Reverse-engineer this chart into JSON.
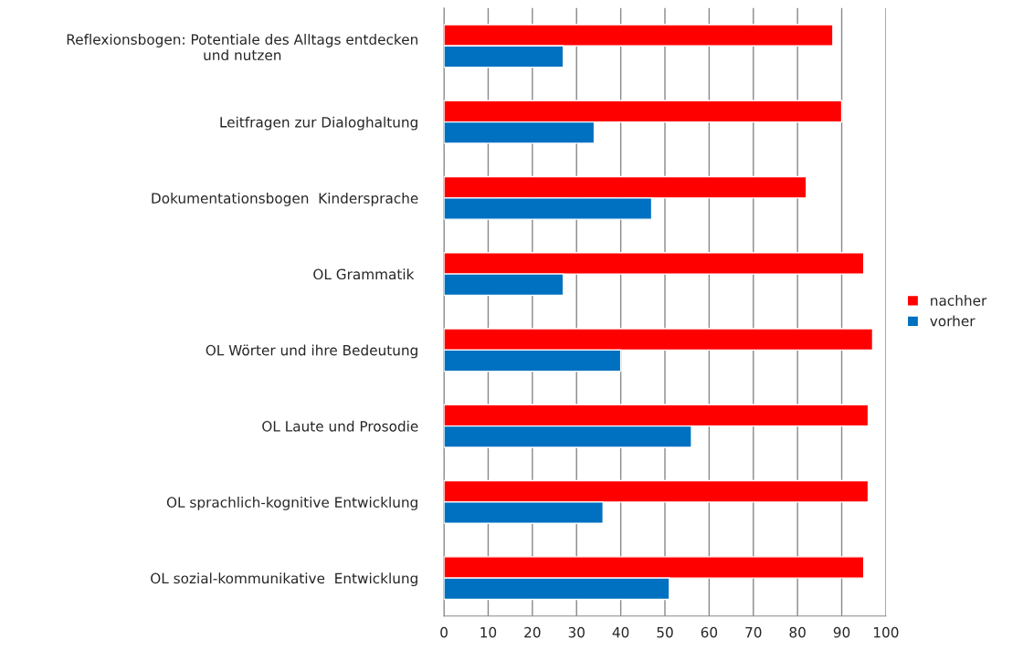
{
  "chart_data": {
    "type": "bar",
    "orientation": "horizontal",
    "categories": [
      "Reflexionsbogen: Potentiale des Alltags entdecken\nund nutzen",
      "Leitfragen zur Dialoghaltung",
      "Dokumentationsbogen  Kindersprache",
      "OL Grammatik ",
      "OL Wörter und ihre Bedeutung",
      "OL Laute und Prosodie",
      "OL sprachlich-kognitive Entwicklung",
      "OL sozial-kommunikative  Entwicklung"
    ],
    "series": [
      {
        "name": "nachher",
        "color": "#ff0000",
        "values": [
          88,
          90,
          82,
          95,
          97,
          96,
          96,
          95
        ]
      },
      {
        "name": "vorher",
        "color": "#0070c0",
        "values": [
          27,
          34,
          47,
          27,
          40,
          56,
          36,
          51
        ]
      }
    ],
    "xlim": [
      0,
      100
    ],
    "xticks": [
      0,
      10,
      20,
      30,
      40,
      50,
      60,
      70,
      80,
      90,
      100
    ],
    "grid": "x",
    "legend": "right"
  }
}
